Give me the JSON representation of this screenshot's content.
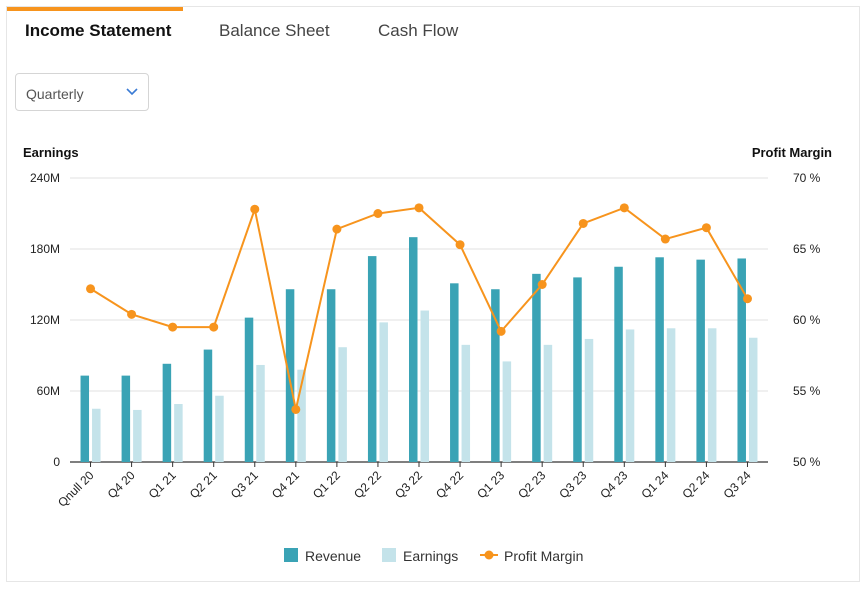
{
  "tabs": [
    {
      "label": "Income Statement",
      "active": true
    },
    {
      "label": "Balance Sheet",
      "active": false
    },
    {
      "label": "Cash Flow",
      "active": false
    }
  ],
  "period_select": {
    "value": "Quarterly"
  },
  "colors": {
    "accent": "#f7941d",
    "revenue": "#3aa3b5",
    "earnings": "#c4e3ea",
    "profit_margin": "#f7941d"
  },
  "chart_data": {
    "type": "bar",
    "categories": [
      "Qnull 20",
      "Q4 20",
      "Q1 21",
      "Q2 21",
      "Q3 21",
      "Q4 21",
      "Q1 22",
      "Q2 22",
      "Q3 22",
      "Q4 22",
      "Q1 23",
      "Q2 23",
      "Q3 23",
      "Q4 23",
      "Q1 24",
      "Q2 24",
      "Q3 24"
    ],
    "ylabel_left": "Earnings",
    "ylabel_right": "Profit Margin",
    "ylim_left": [
      0,
      240
    ],
    "yticks_left": [
      "0",
      "60M",
      "120M",
      "180M",
      "240M"
    ],
    "ylim_right": [
      50,
      70
    ],
    "yticks_right": [
      "50 %",
      "55 %",
      "60 %",
      "65 %",
      "70 %"
    ],
    "grid": true,
    "legend_position": "bottom",
    "series": [
      {
        "name": "Revenue",
        "type": "bar",
        "axis": "left",
        "unit": "M",
        "values": [
          73,
          73,
          83,
          95,
          122,
          146,
          146,
          174,
          190,
          151,
          146,
          159,
          156,
          165,
          173,
          171,
          172
        ]
      },
      {
        "name": "Earnings",
        "type": "bar",
        "axis": "left",
        "unit": "M",
        "values": [
          45,
          44,
          49,
          56,
          82,
          78,
          97,
          118,
          128,
          99,
          85,
          99,
          104,
          112,
          113,
          113,
          105
        ]
      },
      {
        "name": "Profit Margin",
        "type": "line",
        "axis": "right",
        "unit": "%",
        "values": [
          62.2,
          60.4,
          59.5,
          59.5,
          67.8,
          53.7,
          66.4,
          67.5,
          67.9,
          65.3,
          59.2,
          62.5,
          66.8,
          67.9,
          65.7,
          66.5,
          61.5
        ]
      }
    ]
  }
}
